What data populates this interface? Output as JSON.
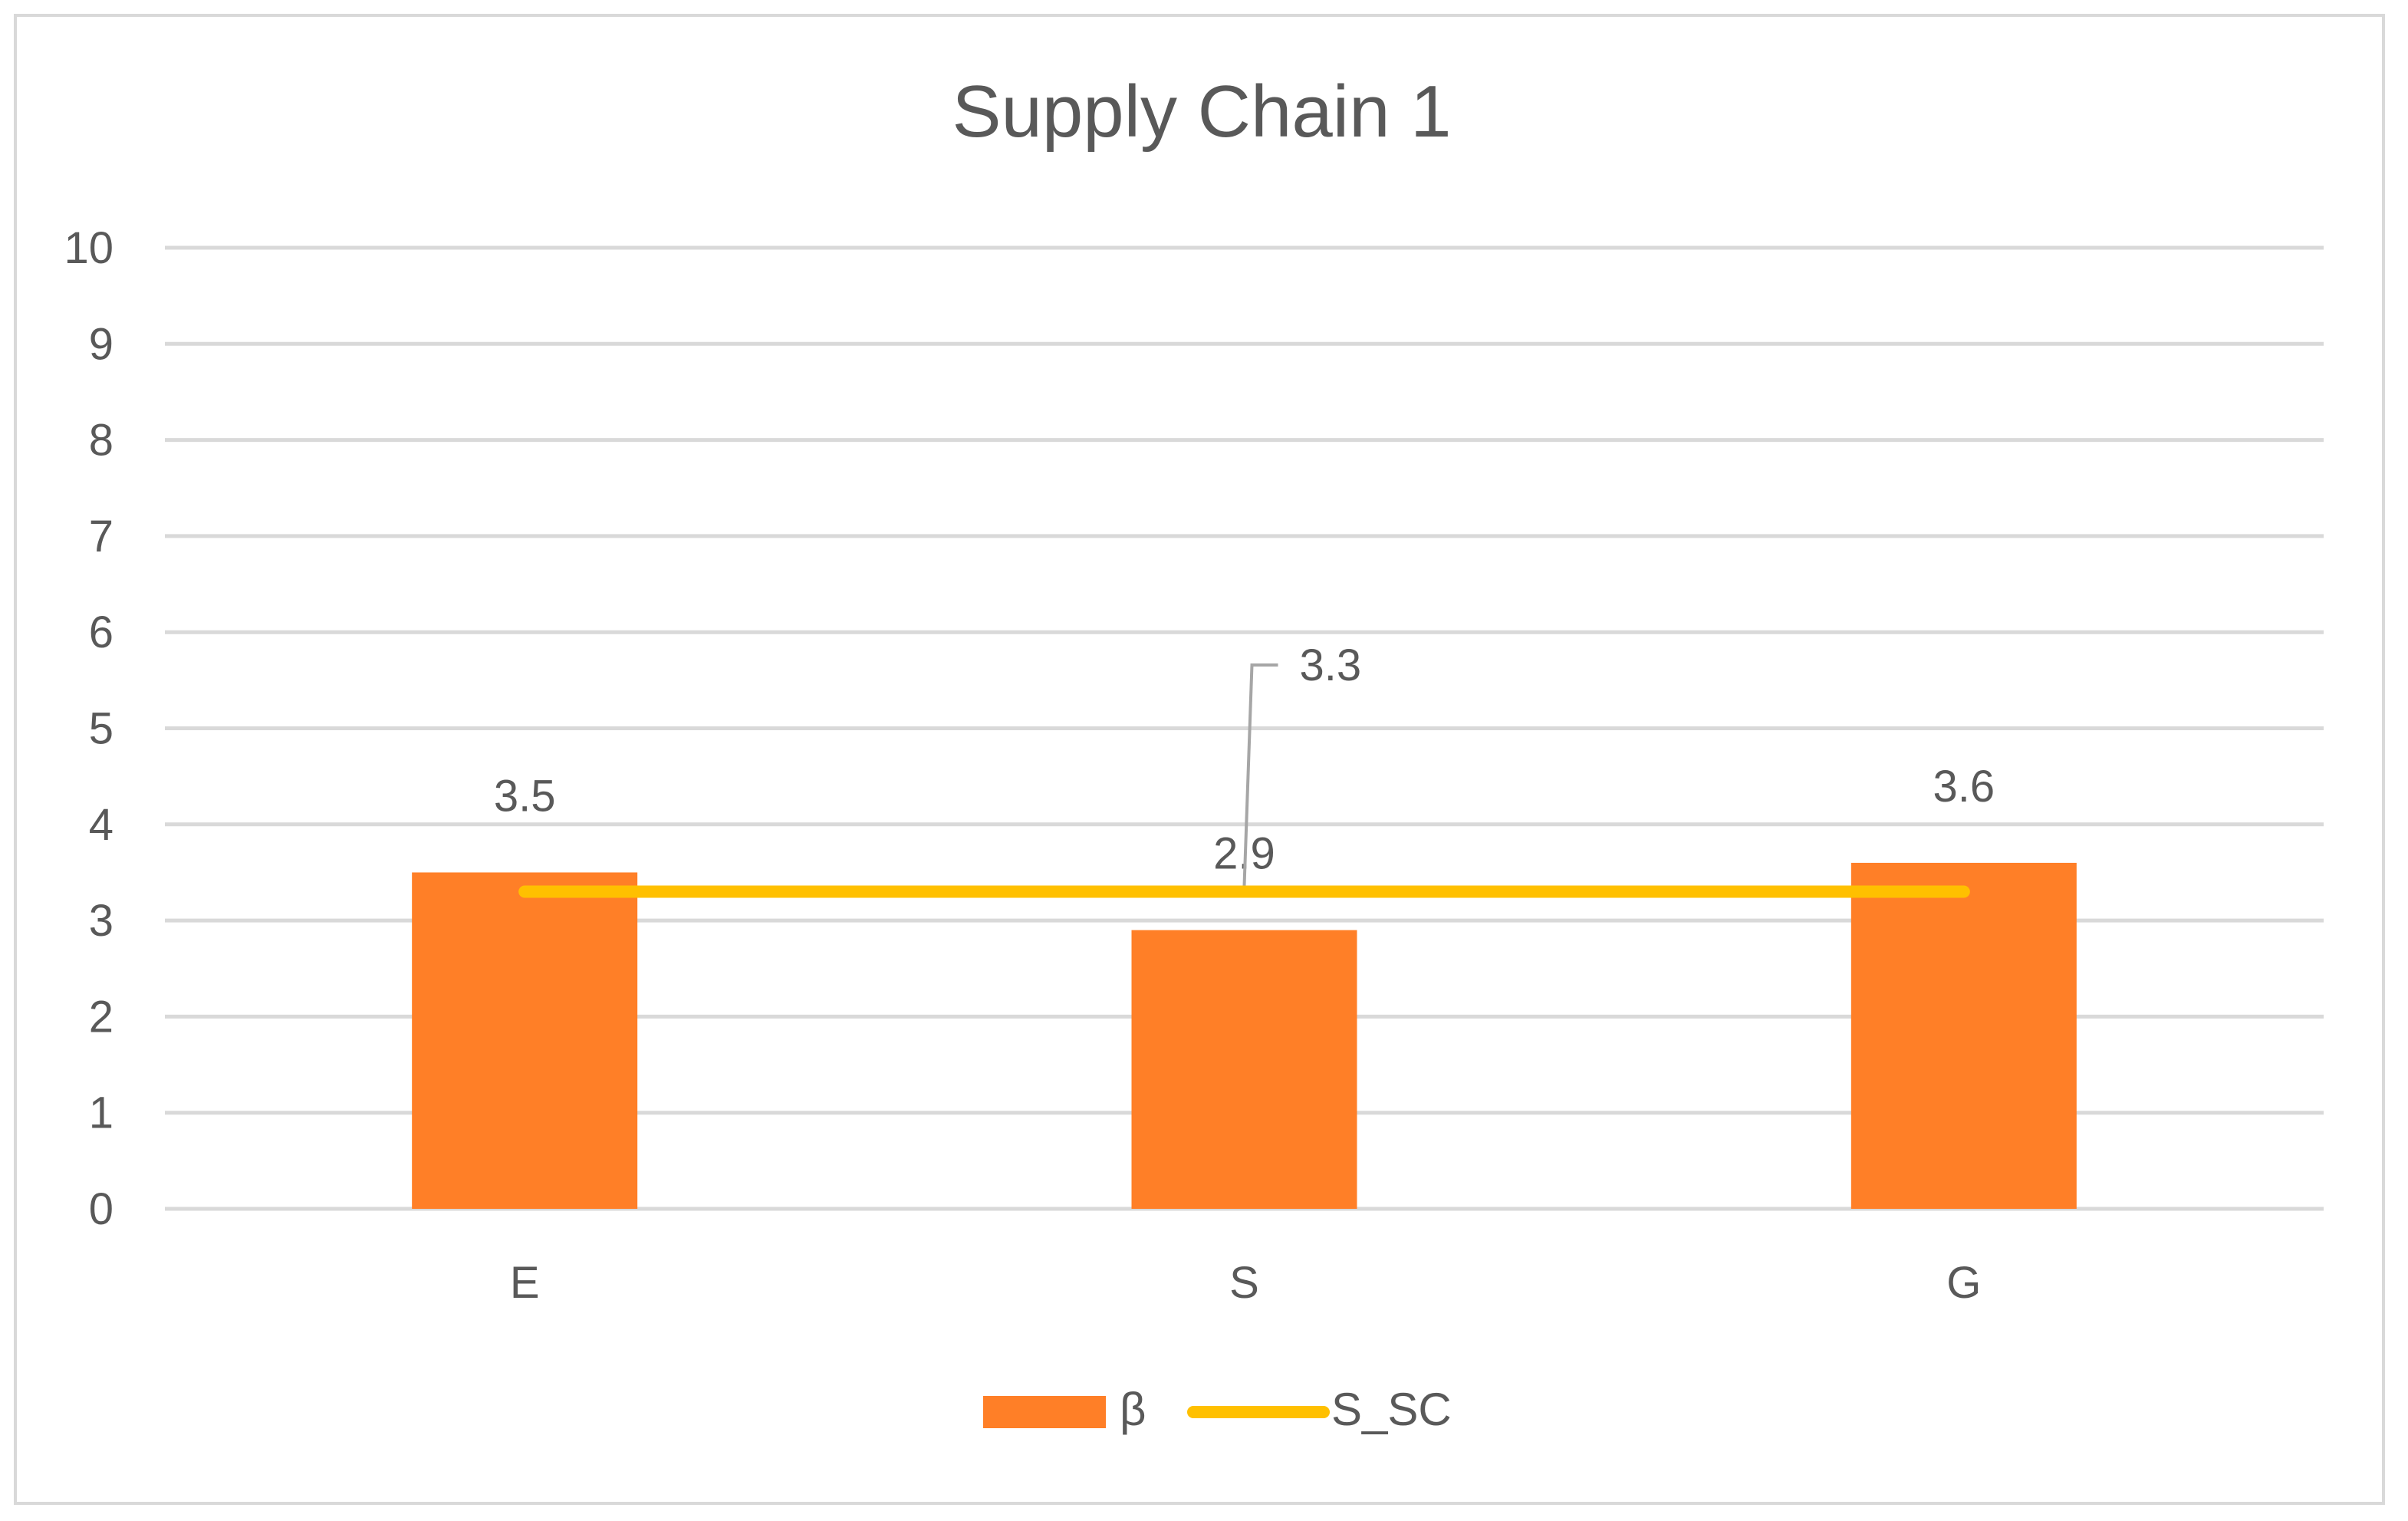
{
  "chart_data": {
    "type": "bar",
    "title": "Supply Chain 1",
    "categories": [
      "E",
      "S",
      "G"
    ],
    "series": [
      {
        "name": "β",
        "type": "bar",
        "values": [
          3.5,
          2.9,
          3.6
        ],
        "color": "#ff7f27"
      },
      {
        "name": "S_SC",
        "type": "line",
        "values": [
          3.3,
          3.3,
          3.3
        ],
        "color": "#ffc000"
      }
    ],
    "bar_labels": [
      "3.5",
      "2.9",
      "3.6"
    ],
    "line_label": "3.3",
    "ylim": [
      0,
      10
    ],
    "y_ticks": [
      "0",
      "1",
      "2",
      "3",
      "4",
      "5",
      "6",
      "7",
      "8",
      "9",
      "10"
    ],
    "xlabel": "",
    "ylabel": "",
    "grid": true,
    "legend": "bottom"
  }
}
